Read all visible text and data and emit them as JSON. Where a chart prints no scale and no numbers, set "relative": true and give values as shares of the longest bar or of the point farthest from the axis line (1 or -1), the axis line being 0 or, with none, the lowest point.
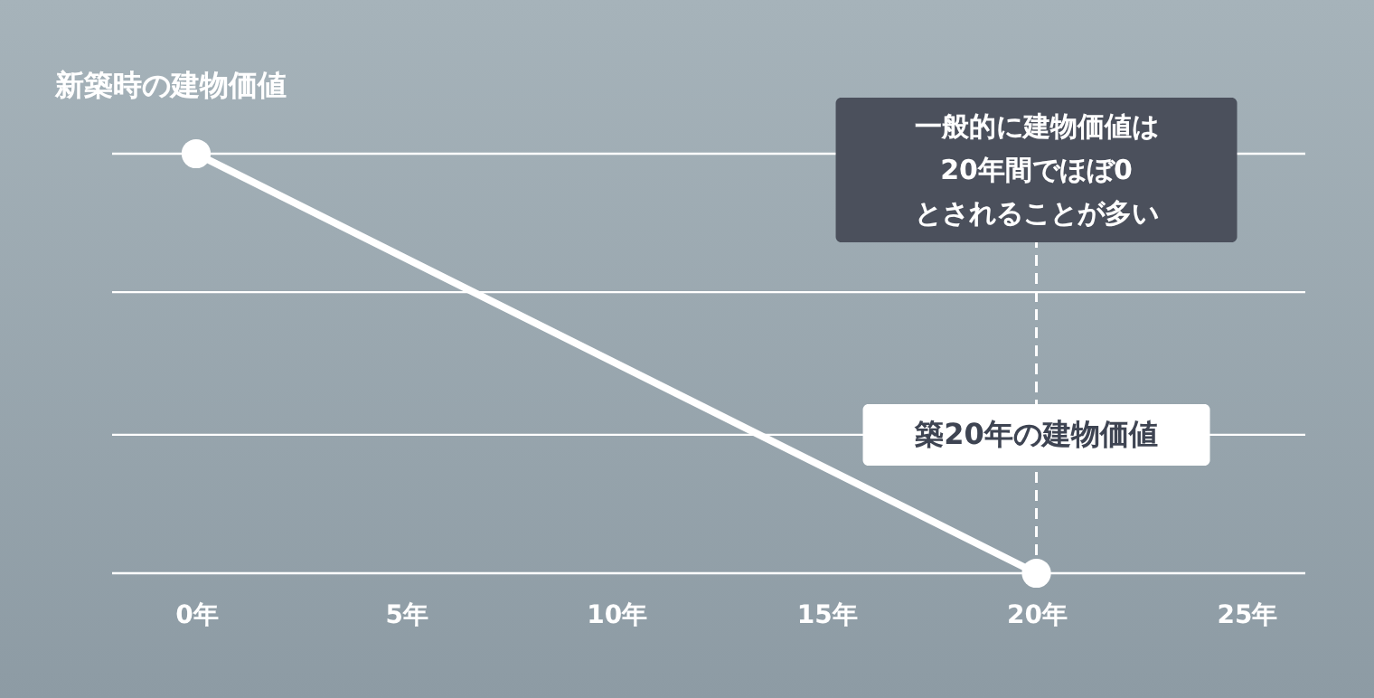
{
  "chart_data": {
    "type": "line",
    "ylabel": "新築時の建物価値",
    "x": [
      0,
      20
    ],
    "values": [
      1,
      0
    ],
    "relative": true,
    "color": "#ffffff",
    "xlim": [
      -2,
      26.4
    ],
    "xticks": [
      {
        "value": 0,
        "label": "0年"
      },
      {
        "value": 5,
        "label": "5年"
      },
      {
        "value": 10,
        "label": "10年"
      },
      {
        "value": 15,
        "label": "15年"
      },
      {
        "value": 20,
        "label": "20年"
      },
      {
        "value": 25,
        "label": "25年"
      }
    ],
    "marker": "circle",
    "line_style": "solid",
    "ref_lines": [
      {
        "axis": "y",
        "value": 0,
        "line_style": "solid",
        "color": "#ffffff"
      },
      {
        "axis": "y",
        "value": 0.33,
        "line_style": "solid",
        "color": "#ffffff"
      },
      {
        "axis": "y",
        "value": 0.67,
        "line_style": "solid",
        "color": "#ffffff"
      },
      {
        "axis": "y",
        "value": 1,
        "line_style": "solid",
        "color": "#ffffff"
      },
      {
        "axis": "x",
        "value": 20,
        "line_style": "dashed",
        "color": "#ffffff"
      }
    ],
    "annotations": [
      "一般的に建物価値は\n20年間でほぼ0\nとされることが多い",
      {
        "text": "築20年の建物価値",
        "x": 20,
        "y": 0.33
      }
    ]
  }
}
